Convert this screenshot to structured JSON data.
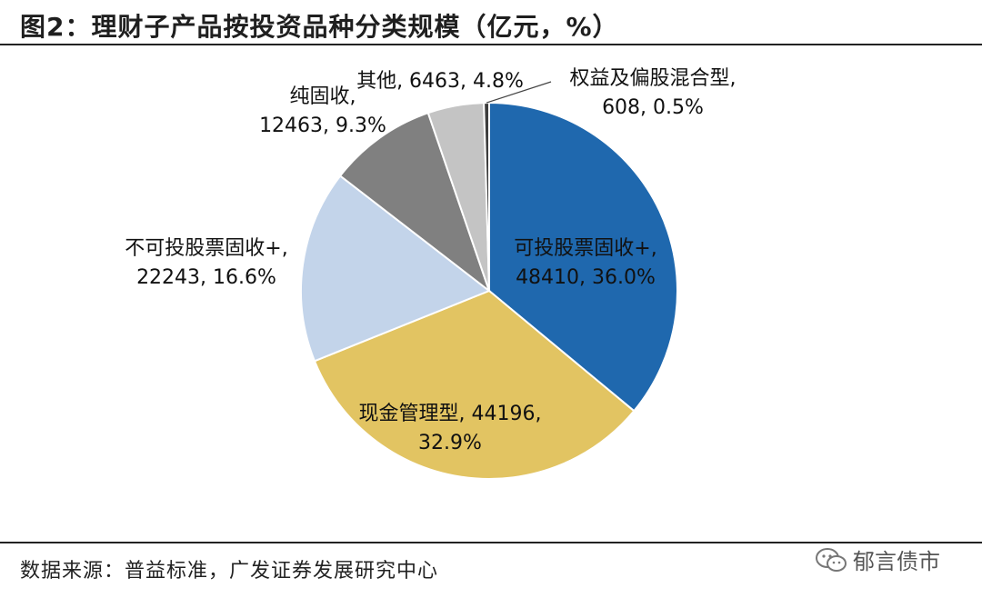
{
  "figure": {
    "title": "图2：理财子产品按投资品种分类规模（亿元，%）",
    "source": "数据来源：普益标准，广发证券发展研究中心",
    "watermark": "郁言债市"
  },
  "chart_data": {
    "type": "pie",
    "title": "理财子产品按投资品种分类规模（亿元，%）",
    "start": "12 o'clock, clockwise",
    "slices": [
      {
        "name": "可投股票固收+",
        "value": 48410,
        "percent": 36.0,
        "color": "#1f68ae",
        "label_lines": [
          "可投股票固收+,",
          "48410, 36.0%"
        ]
      },
      {
        "name": "现金管理型",
        "value": 44196,
        "percent": 32.9,
        "color": "#e2c462",
        "label_lines": [
          "现金管理型, 44196,",
          "32.9%"
        ]
      },
      {
        "name": "不可投股票固收+",
        "value": 22243,
        "percent": 16.6,
        "color": "#c3d4ea",
        "label_lines": [
          "不可投股票固收+,",
          "22243, 16.6%"
        ]
      },
      {
        "name": "纯固收",
        "value": 12463,
        "percent": 9.3,
        "color": "#808080",
        "label_lines": [
          "纯固收,",
          "12463, 9.3%"
        ]
      },
      {
        "name": "其他",
        "value": 6463,
        "percent": 4.8,
        "color": "#c4c4c4",
        "label_lines": [
          "其他, 6463, 4.8%"
        ]
      },
      {
        "name": "权益及偏股混合型",
        "value": 608,
        "percent": 0.5,
        "color": "#3d3d3d",
        "label_lines": [
          "权益及偏股混合型,",
          "608, 0.5%"
        ]
      }
    ]
  }
}
